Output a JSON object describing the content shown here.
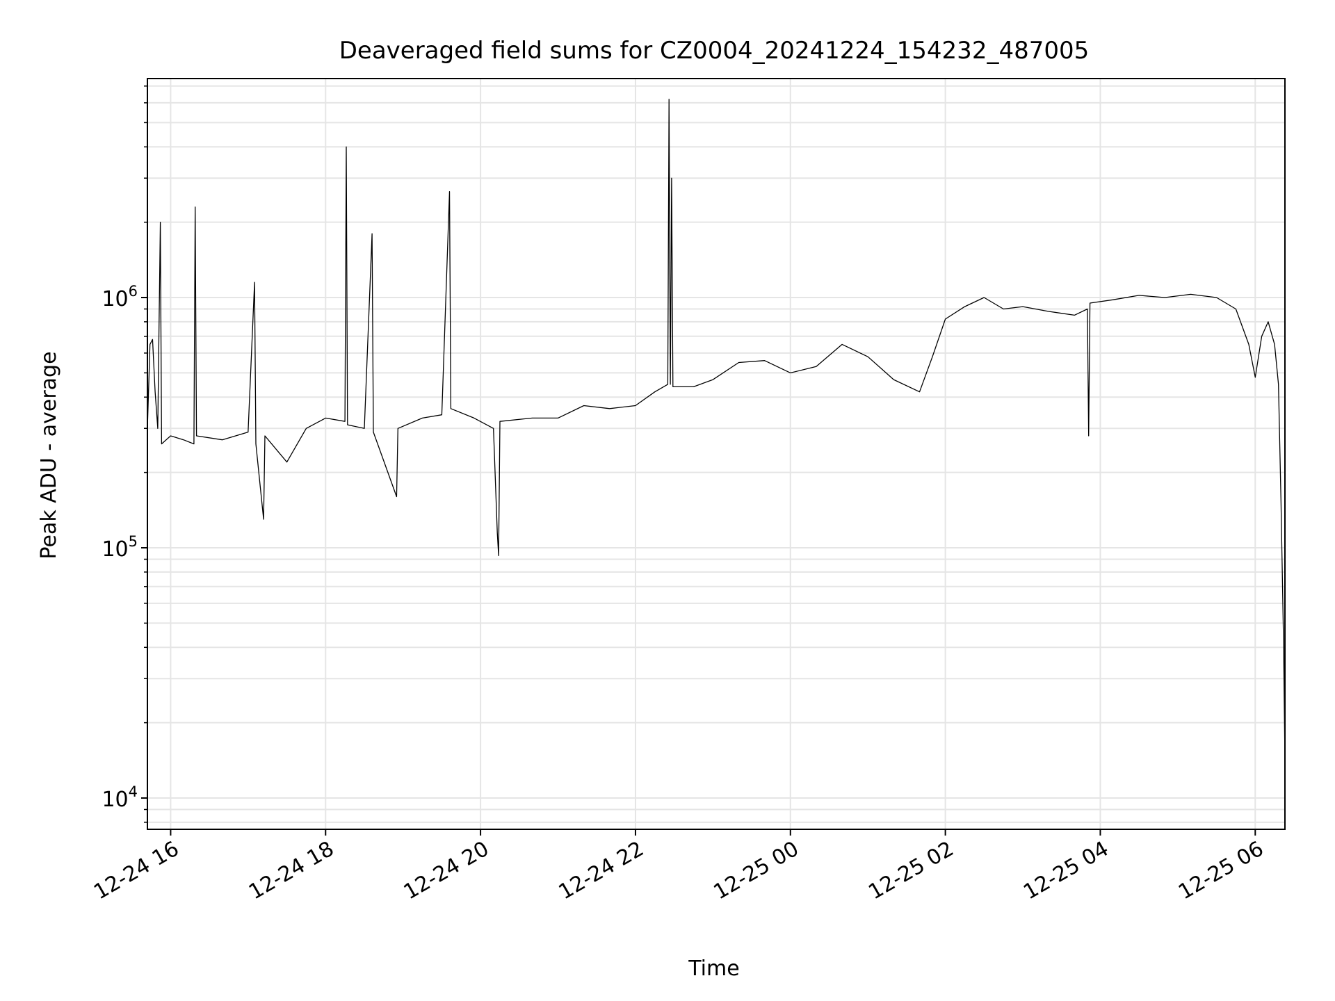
{
  "chart_data": {
    "type": "line",
    "title": "Deaveraged field sums for CZ0004_20241224_154232_487005",
    "xlabel": "Time",
    "ylabel": "Peak ADU - average",
    "yscale": "log",
    "ylim": [
      7500,
      7500000
    ],
    "xlim": [
      "2024-12-24 15:42",
      "2024-12-25 06:23"
    ],
    "grid": true,
    "line_color": "#000000",
    "grid_color": "#e5e5e5",
    "x_ticks": [
      {
        "label": "12-24 16",
        "t": "2024-12-24 16:00"
      },
      {
        "label": "12-24 18",
        "t": "2024-12-24 18:00"
      },
      {
        "label": "12-24 20",
        "t": "2024-12-24 20:00"
      },
      {
        "label": "12-24 22",
        "t": "2024-12-24 22:00"
      },
      {
        "label": "12-25 00",
        "t": "2024-12-25 00:00"
      },
      {
        "label": "12-25 02",
        "t": "2024-12-25 02:00"
      },
      {
        "label": "12-25 04",
        "t": "2024-12-25 04:00"
      },
      {
        "label": "12-25 06",
        "t": "2024-12-25 06:00"
      }
    ],
    "y_ticks": [
      {
        "base": "10",
        "exp": "4",
        "value": 10000
      },
      {
        "base": "10",
        "exp": "5",
        "value": 100000
      },
      {
        "base": "10",
        "exp": "6",
        "value": 1000000
      }
    ],
    "series": [
      {
        "points": [
          [
            "2024-12-24 15:42",
            300000
          ],
          [
            "2024-12-24 15:44",
            650000
          ],
          [
            "2024-12-24 15:46",
            680000
          ],
          [
            "2024-12-24 15:48",
            420000
          ],
          [
            "2024-12-24 15:50",
            300000
          ],
          [
            "2024-12-24 15:52",
            2000000
          ],
          [
            "2024-12-24 15:53",
            260000
          ],
          [
            "2024-12-24 16:00",
            280000
          ],
          [
            "2024-12-24 16:10",
            270000
          ],
          [
            "2024-12-24 16:18",
            260000
          ],
          [
            "2024-12-24 16:19",
            2300000
          ],
          [
            "2024-12-24 16:20",
            280000
          ],
          [
            "2024-12-24 16:40",
            270000
          ],
          [
            "2024-12-24 17:00",
            290000
          ],
          [
            "2024-12-24 17:05",
            1150000
          ],
          [
            "2024-12-24 17:06",
            260000
          ],
          [
            "2024-12-24 17:12",
            130000
          ],
          [
            "2024-12-24 17:13",
            280000
          ],
          [
            "2024-12-24 17:30",
            220000
          ],
          [
            "2024-12-24 17:45",
            300000
          ],
          [
            "2024-12-24 18:00",
            330000
          ],
          [
            "2024-12-24 18:15",
            320000
          ],
          [
            "2024-12-24 18:16",
            4000000
          ],
          [
            "2024-12-24 18:17",
            310000
          ],
          [
            "2024-12-24 18:30",
            300000
          ],
          [
            "2024-12-24 18:36",
            1800000
          ],
          [
            "2024-12-24 18:37",
            290000
          ],
          [
            "2024-12-24 18:55",
            160000
          ],
          [
            "2024-12-24 18:56",
            300000
          ],
          [
            "2024-12-24 19:15",
            330000
          ],
          [
            "2024-12-24 19:30",
            340000
          ],
          [
            "2024-12-24 19:36",
            2650000
          ],
          [
            "2024-12-24 19:37",
            360000
          ],
          [
            "2024-12-24 19:55",
            330000
          ],
          [
            "2024-12-24 20:10",
            300000
          ],
          [
            "2024-12-24 20:13",
            115000
          ],
          [
            "2024-12-24 20:14",
            93000
          ],
          [
            "2024-12-24 20:15",
            320000
          ],
          [
            "2024-12-24 20:40",
            330000
          ],
          [
            "2024-12-24 21:00",
            330000
          ],
          [
            "2024-12-24 21:20",
            370000
          ],
          [
            "2024-12-24 21:40",
            360000
          ],
          [
            "2024-12-24 22:00",
            370000
          ],
          [
            "2024-12-24 22:15",
            420000
          ],
          [
            "2024-12-24 22:25",
            450000
          ],
          [
            "2024-12-24 22:26",
            6200000
          ],
          [
            "2024-12-24 22:27",
            450000
          ],
          [
            "2024-12-24 22:28",
            3000000
          ],
          [
            "2024-12-24 22:29",
            440000
          ],
          [
            "2024-12-24 22:45",
            440000
          ],
          [
            "2024-12-24 23:00",
            470000
          ],
          [
            "2024-12-24 23:20",
            550000
          ],
          [
            "2024-12-24 23:40",
            560000
          ],
          [
            "2024-12-25 00:00",
            500000
          ],
          [
            "2024-12-25 00:20",
            530000
          ],
          [
            "2024-12-25 00:40",
            650000
          ],
          [
            "2024-12-25 01:00",
            580000
          ],
          [
            "2024-12-25 01:20",
            470000
          ],
          [
            "2024-12-25 01:40",
            420000
          ],
          [
            "2024-12-25 01:50",
            580000
          ],
          [
            "2024-12-25 02:00",
            820000
          ],
          [
            "2024-12-25 02:15",
            920000
          ],
          [
            "2024-12-25 02:30",
            1000000
          ],
          [
            "2024-12-25 02:45",
            900000
          ],
          [
            "2024-12-25 03:00",
            920000
          ],
          [
            "2024-12-25 03:20",
            880000
          ],
          [
            "2024-12-25 03:40",
            850000
          ],
          [
            "2024-12-25 03:50",
            900000
          ],
          [
            "2024-12-25 03:51",
            280000
          ],
          [
            "2024-12-25 03:52",
            950000
          ],
          [
            "2024-12-25 04:10",
            980000
          ],
          [
            "2024-12-25 04:30",
            1020000
          ],
          [
            "2024-12-25 04:50",
            1000000
          ],
          [
            "2024-12-25 05:10",
            1030000
          ],
          [
            "2024-12-25 05:30",
            1000000
          ],
          [
            "2024-12-25 05:45",
            900000
          ],
          [
            "2024-12-25 05:55",
            650000
          ],
          [
            "2024-12-25 06:00",
            480000
          ],
          [
            "2024-12-25 06:05",
            700000
          ],
          [
            "2024-12-25 06:10",
            800000
          ],
          [
            "2024-12-25 06:15",
            650000
          ],
          [
            "2024-12-25 06:18",
            450000
          ],
          [
            "2024-12-25 06:20",
            150000
          ],
          [
            "2024-12-25 06:22",
            40000
          ],
          [
            "2024-12-25 06:23",
            14000
          ]
        ]
      }
    ]
  }
}
